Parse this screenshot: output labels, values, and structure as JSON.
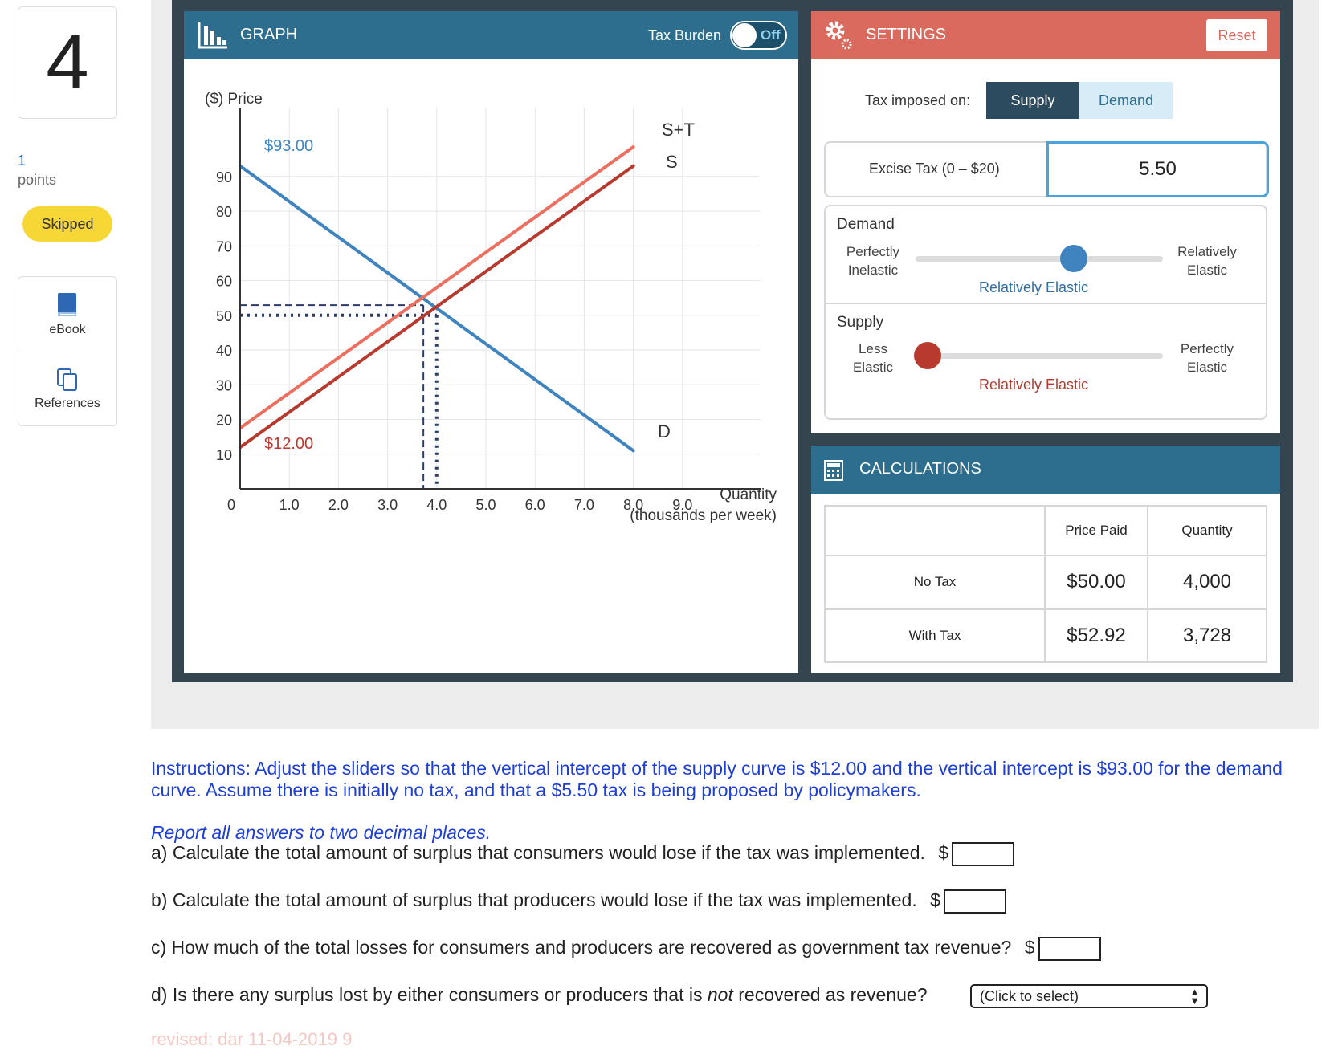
{
  "question": {
    "number": "4",
    "points_value": "1",
    "points_label": "points",
    "status_badge": "Skipped"
  },
  "tools": [
    {
      "label": "eBook",
      "icon": "book-icon"
    },
    {
      "label": "References",
      "icon": "copy-icon"
    }
  ],
  "graph": {
    "title": "GRAPH",
    "tax_burden_label": "Tax Burden",
    "toggle_state": "Off",
    "y_axis_label": "($) Price",
    "x_axis_label_1": "Quantity",
    "x_axis_label_2": "(thousands per week)",
    "y_ticks": [
      "0",
      "10",
      "20",
      "30",
      "40",
      "50",
      "60",
      "70",
      "80",
      "90"
    ],
    "x_ticks": [
      "1.0",
      "2.0",
      "3.0",
      "4.0",
      "5.0",
      "6.0",
      "7.0",
      "8.0",
      "9.0"
    ],
    "demand_intercept_label": "$93.00",
    "supply_intercept_label": "$12.00",
    "curve_labels": {
      "supply_tax": "S+T",
      "supply": "S",
      "demand": "D"
    },
    "colors": {
      "demand": "#3f84bf",
      "supply": "#b83a2f",
      "supply_tax": "#ec6f60"
    }
  },
  "chart_data": {
    "type": "line",
    "xlim": [
      0,
      10
    ],
    "ylim": [
      0,
      93
    ],
    "series": [
      {
        "name": "D",
        "x": [
          0,
          8.0
        ],
        "y": [
          93,
          11
        ]
      },
      {
        "name": "S",
        "x": [
          0,
          8.0
        ],
        "y": [
          12,
          93
        ]
      },
      {
        "name": "S+T",
        "x": [
          0,
          8.0
        ],
        "y": [
          17.5,
          98.5
        ]
      }
    ],
    "guides": [
      {
        "price": 52.92,
        "quantity": 3.728
      },
      {
        "price": 50.0,
        "quantity": 4.0
      }
    ]
  },
  "settings": {
    "title": "SETTINGS",
    "reset_label": "Reset",
    "tax_imposed_label": "Tax imposed on:",
    "tax_options": [
      "Supply",
      "Demand"
    ],
    "tax_selected": "Supply",
    "excise_label": "Excise Tax (0 – $20)",
    "excise_value": "5.50",
    "demand": {
      "title": "Demand",
      "left_1": "Perfectly",
      "left_2": "Inelastic",
      "right_1": "Relatively",
      "right_2": "Elastic",
      "value_label": "Relatively Elastic",
      "position": 0.64
    },
    "supply": {
      "title": "Supply",
      "left_1": "Less",
      "left_2": "Elastic",
      "right_1": "Perfectly",
      "right_2": "Elastic",
      "value_label": "Relatively Elastic",
      "position": 0.05
    }
  },
  "calculations": {
    "title": "CALCULATIONS",
    "headers": [
      "Price Paid",
      "Quantity"
    ],
    "rows": [
      {
        "label": "No Tax",
        "price": "$50.00",
        "quantity": "4,000"
      },
      {
        "label": "With Tax",
        "price": "$52.92",
        "quantity": "3,728"
      }
    ]
  },
  "instructions": {
    "text": "Instructions: Adjust the sliders so that the vertical intercept of the supply curve is $12.00 and the vertical intercept is $93.00 for the demand curve.  Assume there is initially no tax, and that a $5.50 tax is being proposed by policymakers.",
    "report_note": "Report all answers to two decimal places.",
    "q_a": "a) Calculate the total amount of surplus that consumers would lose if the tax was implemented.",
    "q_b": "b) Calculate the total amount of surplus that producers would lose if the tax was implemented.",
    "q_c": "c) How much of the total losses for consumers and producers are recovered as government tax revenue?",
    "q_d_pre": "d) Is there any surplus lost by either consumers or producers that is",
    "q_d_em": "not",
    "q_d_post": "recovered as revenue?",
    "currency": "$",
    "select_placeholder": "(Click to select)",
    "revised_note": "revised: dar 11-04-2019 9"
  }
}
